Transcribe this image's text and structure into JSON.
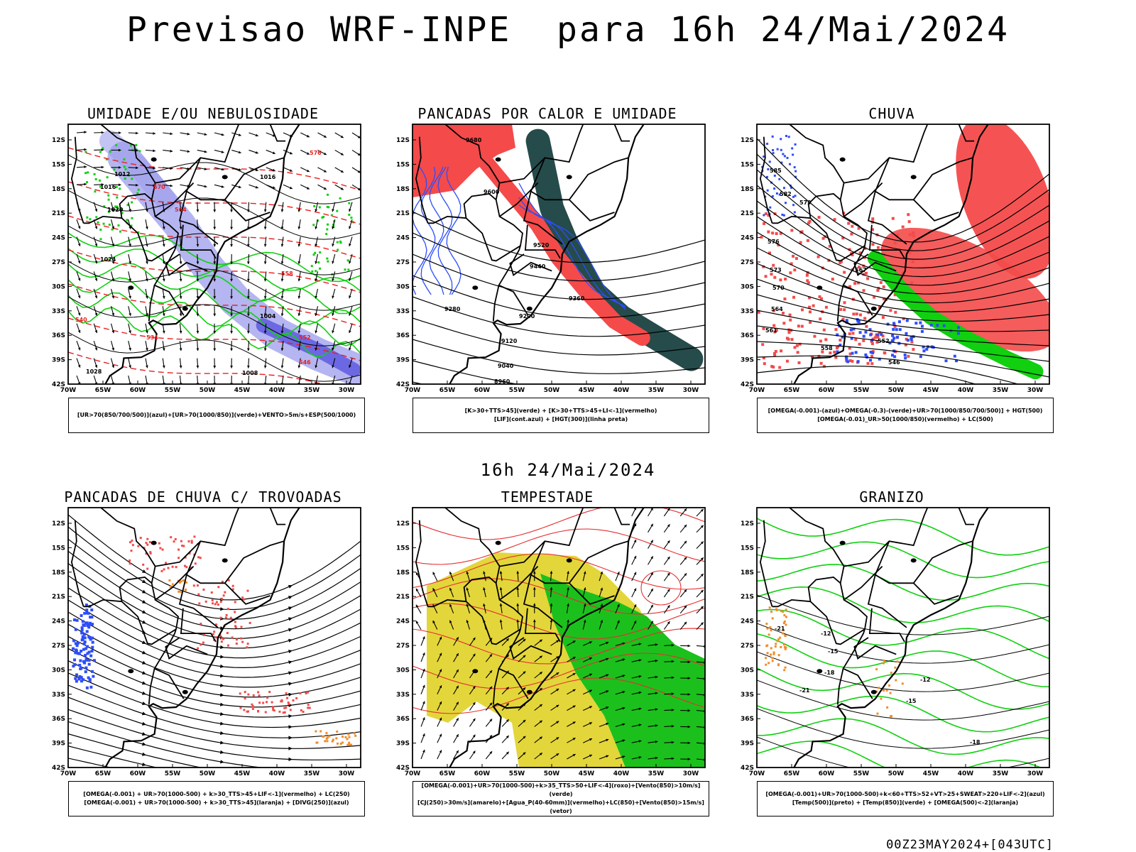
{
  "header": {
    "title": "Previsao WRF-INPE  para 16h 24/Mai/2024"
  },
  "mid_title": "16h 24/Mai/2024",
  "footer_stamp": "00Z23MAY2024+[043UTC]",
  "axes": {
    "lat_labels": [
      "12S",
      "15S",
      "18S",
      "21S",
      "24S",
      "27S",
      "30S",
      "33S",
      "36S",
      "39S",
      "42S"
    ],
    "lon_labels": [
      "70W",
      "65W",
      "60W",
      "55W",
      "50W",
      "45W",
      "40W",
      "35W",
      "30W"
    ]
  },
  "colors": {
    "red": "#f44a4a",
    "blue": "#2d4dfb",
    "green": "#10d010",
    "dark_teal": "#264b4b",
    "yellow": "#e3d63a",
    "orange": "#f08c2a",
    "lavender": "#9c9cec"
  },
  "panels": [
    {
      "title": "UMIDADE E/OU NEBULOSIDADE",
      "legend": [
        "[UR>70(850/700/500)](azul)+[UR>70(1000/850)](verde)+VENTO>5m/s+ESP(500/1000)"
      ],
      "contour_labels": [
        "1012",
        "1016",
        "1020",
        "1024",
        "1008",
        "1004",
        "1016",
        "576",
        "570",
        "564",
        "558",
        "552",
        "546",
        "540",
        "534",
        "1028"
      ]
    },
    {
      "title": "PANCADAS POR CALOR E UMIDADE",
      "legend": [
        "[K>30+TTS>45](verde) + [K>30+TTS>45+LI<-1](vermelho)",
        "[LIF](cont.azul) + [HGT(300)](linha preta)"
      ],
      "contour_labels": [
        "9680",
        "9600",
        "9520",
        "9440",
        "9360",
        "9280",
        "9200",
        "9120",
        "9040",
        "8960"
      ]
    },
    {
      "title": "CHUVA",
      "legend": [
        "[OMEGA(-0.001)-(azul)+OMEGA(-0.3)-(verde)+UR>70(1000/850/700/500)] + HGT(500)",
        "[OMEGA(-0.01)_UR>50(1000/850)(vermelho) + LC(500)"
      ],
      "contour_labels": [
        "585",
        "582",
        "579",
        "576",
        "573",
        "570",
        "567",
        "564",
        "561",
        "558",
        "552",
        "546"
      ]
    },
    {
      "title": "PANCADAS DE CHUVA C/ TROVOADAS",
      "legend": [
        "[OMEGA(-0.001) + UR>70(1000-500) + k>30_TTS>45+LIF<-1](vermelho) + LC(250)",
        "[OMEGA(-0.001) + UR>70(1000-500) + k>30_TTS>45](laranja) + [DIVG(250)](azul)"
      ],
      "contour_labels": []
    },
    {
      "title": "TEMPESTADE",
      "legend": [
        "[OMEGA(-0.001)+UR>70(1000-500)+k>35_TTS>50+LIF<-4](roxo)+[Vento(850)>10m/s](verde)",
        "[CJ(250)>30m/s](amarelo)+[Agua_P(40-60mm)](vermelho)+LC(850)+[Vento(850)>15m/s](vetor)"
      ],
      "contour_labels": []
    },
    {
      "title": "GRANIZO",
      "legend": [
        "[OMEGA(-0.001)+UR>70(1000-500)+k<60+TTS>52+VT>25+SWEAT>220+LIF<-2](azul)",
        "[Temp(500)](preto) + [Temp(850)](verde) + [OMEGA(500)<-2](laranja)"
      ],
      "contour_labels": [
        "-12",
        "-15",
        "-18",
        "-21",
        "-12",
        "-15",
        "-18",
        "-21"
      ]
    }
  ]
}
